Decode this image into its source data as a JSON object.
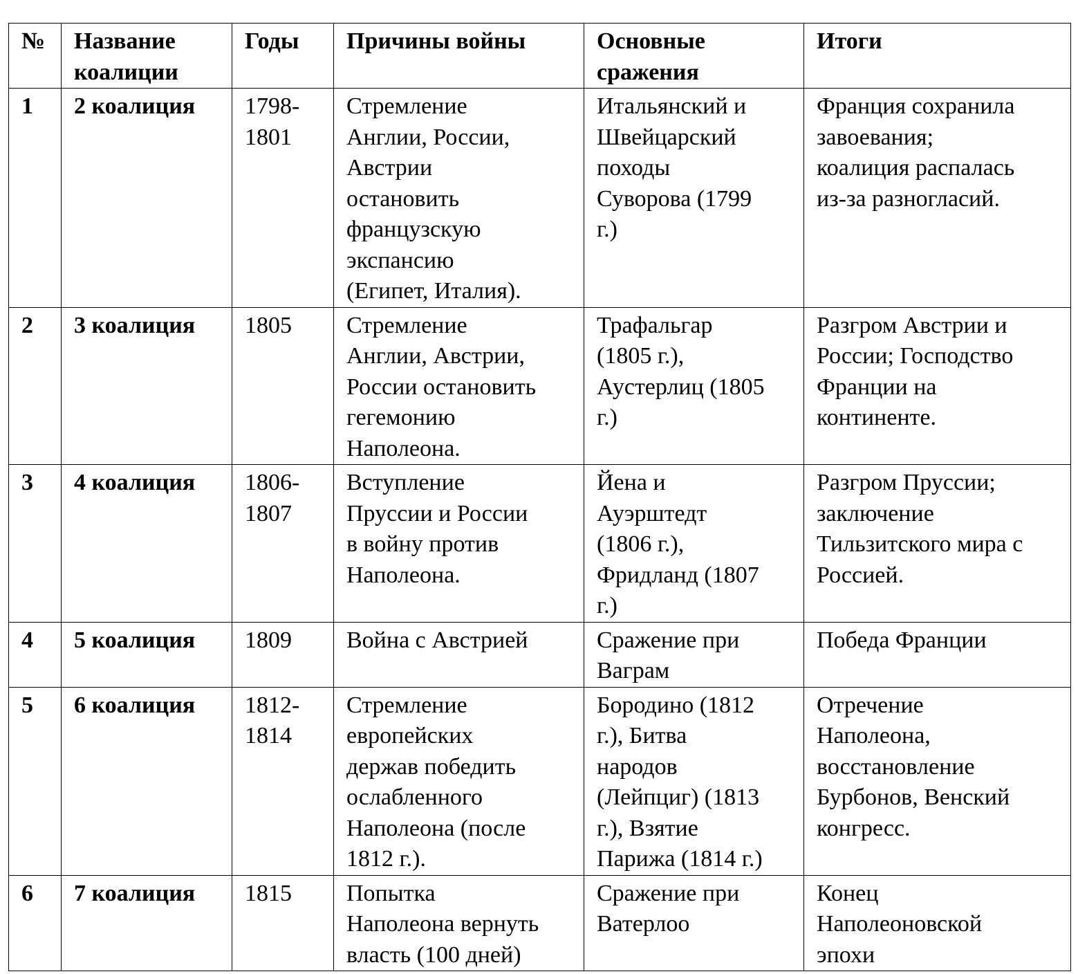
{
  "table": {
    "headers": [
      "№",
      "Название\nкоалиции",
      "Годы",
      "Причины войны",
      "Основные\nсражения",
      "Итоги"
    ],
    "rows": [
      [
        "1",
        "2 коалиция",
        "1798-\n1801",
        "Стремление\nАнглии, России,\nАвстрии\nостановить\nфранцузскую\nэкспансию\n(Египет, Италия).",
        "Итальянский и\nШвейцарский\nпоходы\nСуворова (1799\nг.)",
        "Франция сохранила\nзавоевания;\nкоалиция распалась\nиз-за разногласий."
      ],
      [
        "2",
        "3 коалиция",
        "1805",
        "Стремление\nАнглии, Австрии,\nРоссии остановить\nгегемонию\nНаполеона.",
        "Трафальгар\n(1805 г.),\nАустерлиц (1805\nг.)",
        "Разгром Австрии и\nРоссии; Господство\nФранции на\nконтиненте."
      ],
      [
        "3",
        "4 коалиция",
        "1806-\n1807",
        "Вступление\nПруссии и России\nв войну против\nНаполеона.",
        "Йена и\nАуэрштедт\n(1806 г.),\nФридланд (1807\nг.)",
        "Разгром Пруссии;\nзаключение\nТильзитского мира с\nРоссией."
      ],
      [
        "4",
        "5 коалиция",
        "1809",
        "Война с Австрией",
        "Сражение при\nВаграм",
        "Победа Франции"
      ],
      [
        "5",
        "6 коалиция",
        "1812-\n1814",
        "Стремление\nевропейских\nдержав победить\nослабленного\nНаполеона (после\n1812 г.).",
        "Бородино (1812\nг.), Битва\nнародов\n(Лейпциг) (1813\nг.), Взятие\nПарижа (1814 г.)",
        "Отречение\nНаполеона,\nвосстановление\nБурбонов, Венский\nконгресс."
      ],
      [
        "6",
        "7 коалиция",
        "1815",
        "Попытка\nНаполеона вернуть\nвласть (100 дней)",
        "Сражение при\nВатерлоо",
        "Конец\nНаполеоновской\nэпохи"
      ]
    ]
  }
}
